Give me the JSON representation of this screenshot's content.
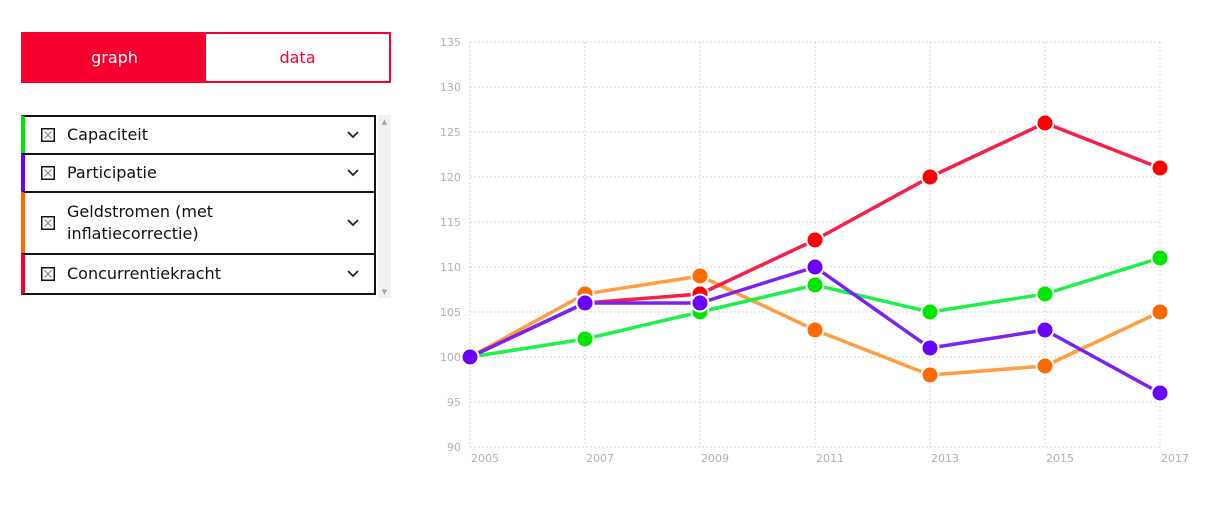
{
  "tabs": {
    "graph_label": "graph",
    "data_label": "data",
    "active": "graph"
  },
  "legend": {
    "items": [
      {
        "label": "Capaciteit",
        "color": "#00e600"
      },
      {
        "label": "Participatie",
        "color": "#6a00ff"
      },
      {
        "label": "Geldstromen (met\ninflatiecorrectie)",
        "color": "#ff6a00"
      },
      {
        "label": "Concurrentiekracht",
        "color": "#f5002f"
      }
    ]
  },
  "chart_data": {
    "type": "line",
    "x": [
      2005,
      2007,
      2009,
      2011,
      2013,
      2015,
      2017
    ],
    "ylim": [
      90,
      135
    ],
    "yticks": [
      90,
      95,
      100,
      105,
      110,
      115,
      120,
      125,
      130,
      135
    ],
    "grid": true,
    "series": [
      {
        "name": "Geldstromen (met\ninflatiecorrectie)",
        "values": [
          100,
          107,
          109,
          103,
          98,
          99,
          105
        ],
        "line_color": "#ff9d40",
        "marker_color": "#ff6a00"
      },
      {
        "name": "Capaciteit",
        "values": [
          100,
          102,
          105,
          108,
          105,
          107,
          111
        ],
        "line_color": "#1ef04a",
        "marker_color": "#00e600"
      },
      {
        "name": "Concurrentiekracht",
        "values": [
          100,
          106,
          107,
          113,
          120,
          126,
          121
        ],
        "line_color": "#f52048",
        "marker_color": "#ff0000"
      },
      {
        "name": "Participatie",
        "values": [
          100,
          106,
          106,
          110,
          101,
          103,
          96
        ],
        "line_color": "#7a22f0",
        "marker_color": "#6a00ff"
      }
    ]
  }
}
